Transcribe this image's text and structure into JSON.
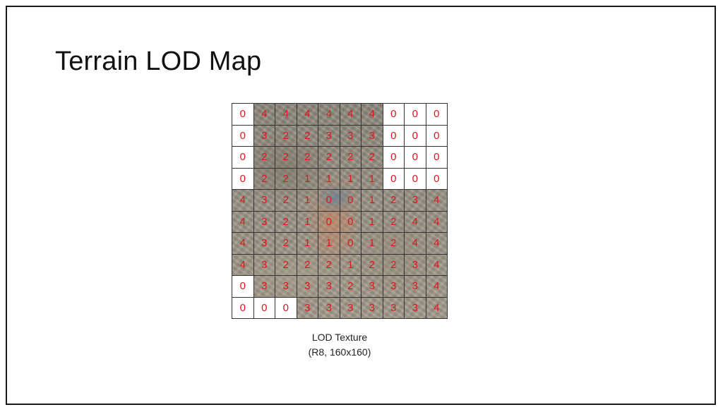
{
  "slide": {
    "title": "Terrain LOD Map"
  },
  "lod_grid": {
    "rows": [
      [
        "0",
        "4",
        "4",
        "4",
        "4",
        "4",
        "4",
        "0",
        "0",
        "0"
      ],
      [
        "0",
        "3",
        "2",
        "2",
        "3",
        "3",
        "3",
        "0",
        "0",
        "0"
      ],
      [
        "0",
        "2",
        "2",
        "2",
        "2",
        "2",
        "2",
        "0",
        "0",
        "0"
      ],
      [
        "0",
        "2",
        "2",
        "1",
        "1",
        "1",
        "1",
        "0",
        "0",
        "0"
      ],
      [
        "4",
        "3",
        "2",
        "1",
        "0",
        "0",
        "1",
        "2",
        "3",
        "4"
      ],
      [
        "4",
        "3",
        "2",
        "1",
        "0",
        "0",
        "1",
        "2",
        "4",
        "4"
      ],
      [
        "4",
        "3",
        "2",
        "1",
        "1",
        "0",
        "1",
        "2",
        "4",
        "4"
      ],
      [
        "4",
        "3",
        "2",
        "2",
        "2",
        "1",
        "2",
        "2",
        "3",
        "4"
      ],
      [
        "0",
        "3",
        "3",
        "3",
        "3",
        "2",
        "3",
        "3",
        "3",
        "4"
      ],
      [
        "0",
        "0",
        "0",
        "3",
        "3",
        "3",
        "3",
        "3",
        "3",
        "4"
      ]
    ],
    "blank_cells": [
      [
        0,
        0
      ],
      [
        0,
        7
      ],
      [
        0,
        8
      ],
      [
        0,
        9
      ],
      [
        1,
        0
      ],
      [
        1,
        7
      ],
      [
        1,
        8
      ],
      [
        1,
        9
      ],
      [
        2,
        0
      ],
      [
        2,
        7
      ],
      [
        2,
        8
      ],
      [
        2,
        9
      ],
      [
        3,
        0
      ],
      [
        3,
        7
      ],
      [
        3,
        8
      ],
      [
        3,
        9
      ],
      [
        8,
        0
      ],
      [
        9,
        0
      ],
      [
        9,
        1
      ],
      [
        9,
        2
      ]
    ],
    "number_color": "#e0141e"
  },
  "caption": {
    "line1": "LOD Texture",
    "line2": "(R8, 160x160)"
  }
}
